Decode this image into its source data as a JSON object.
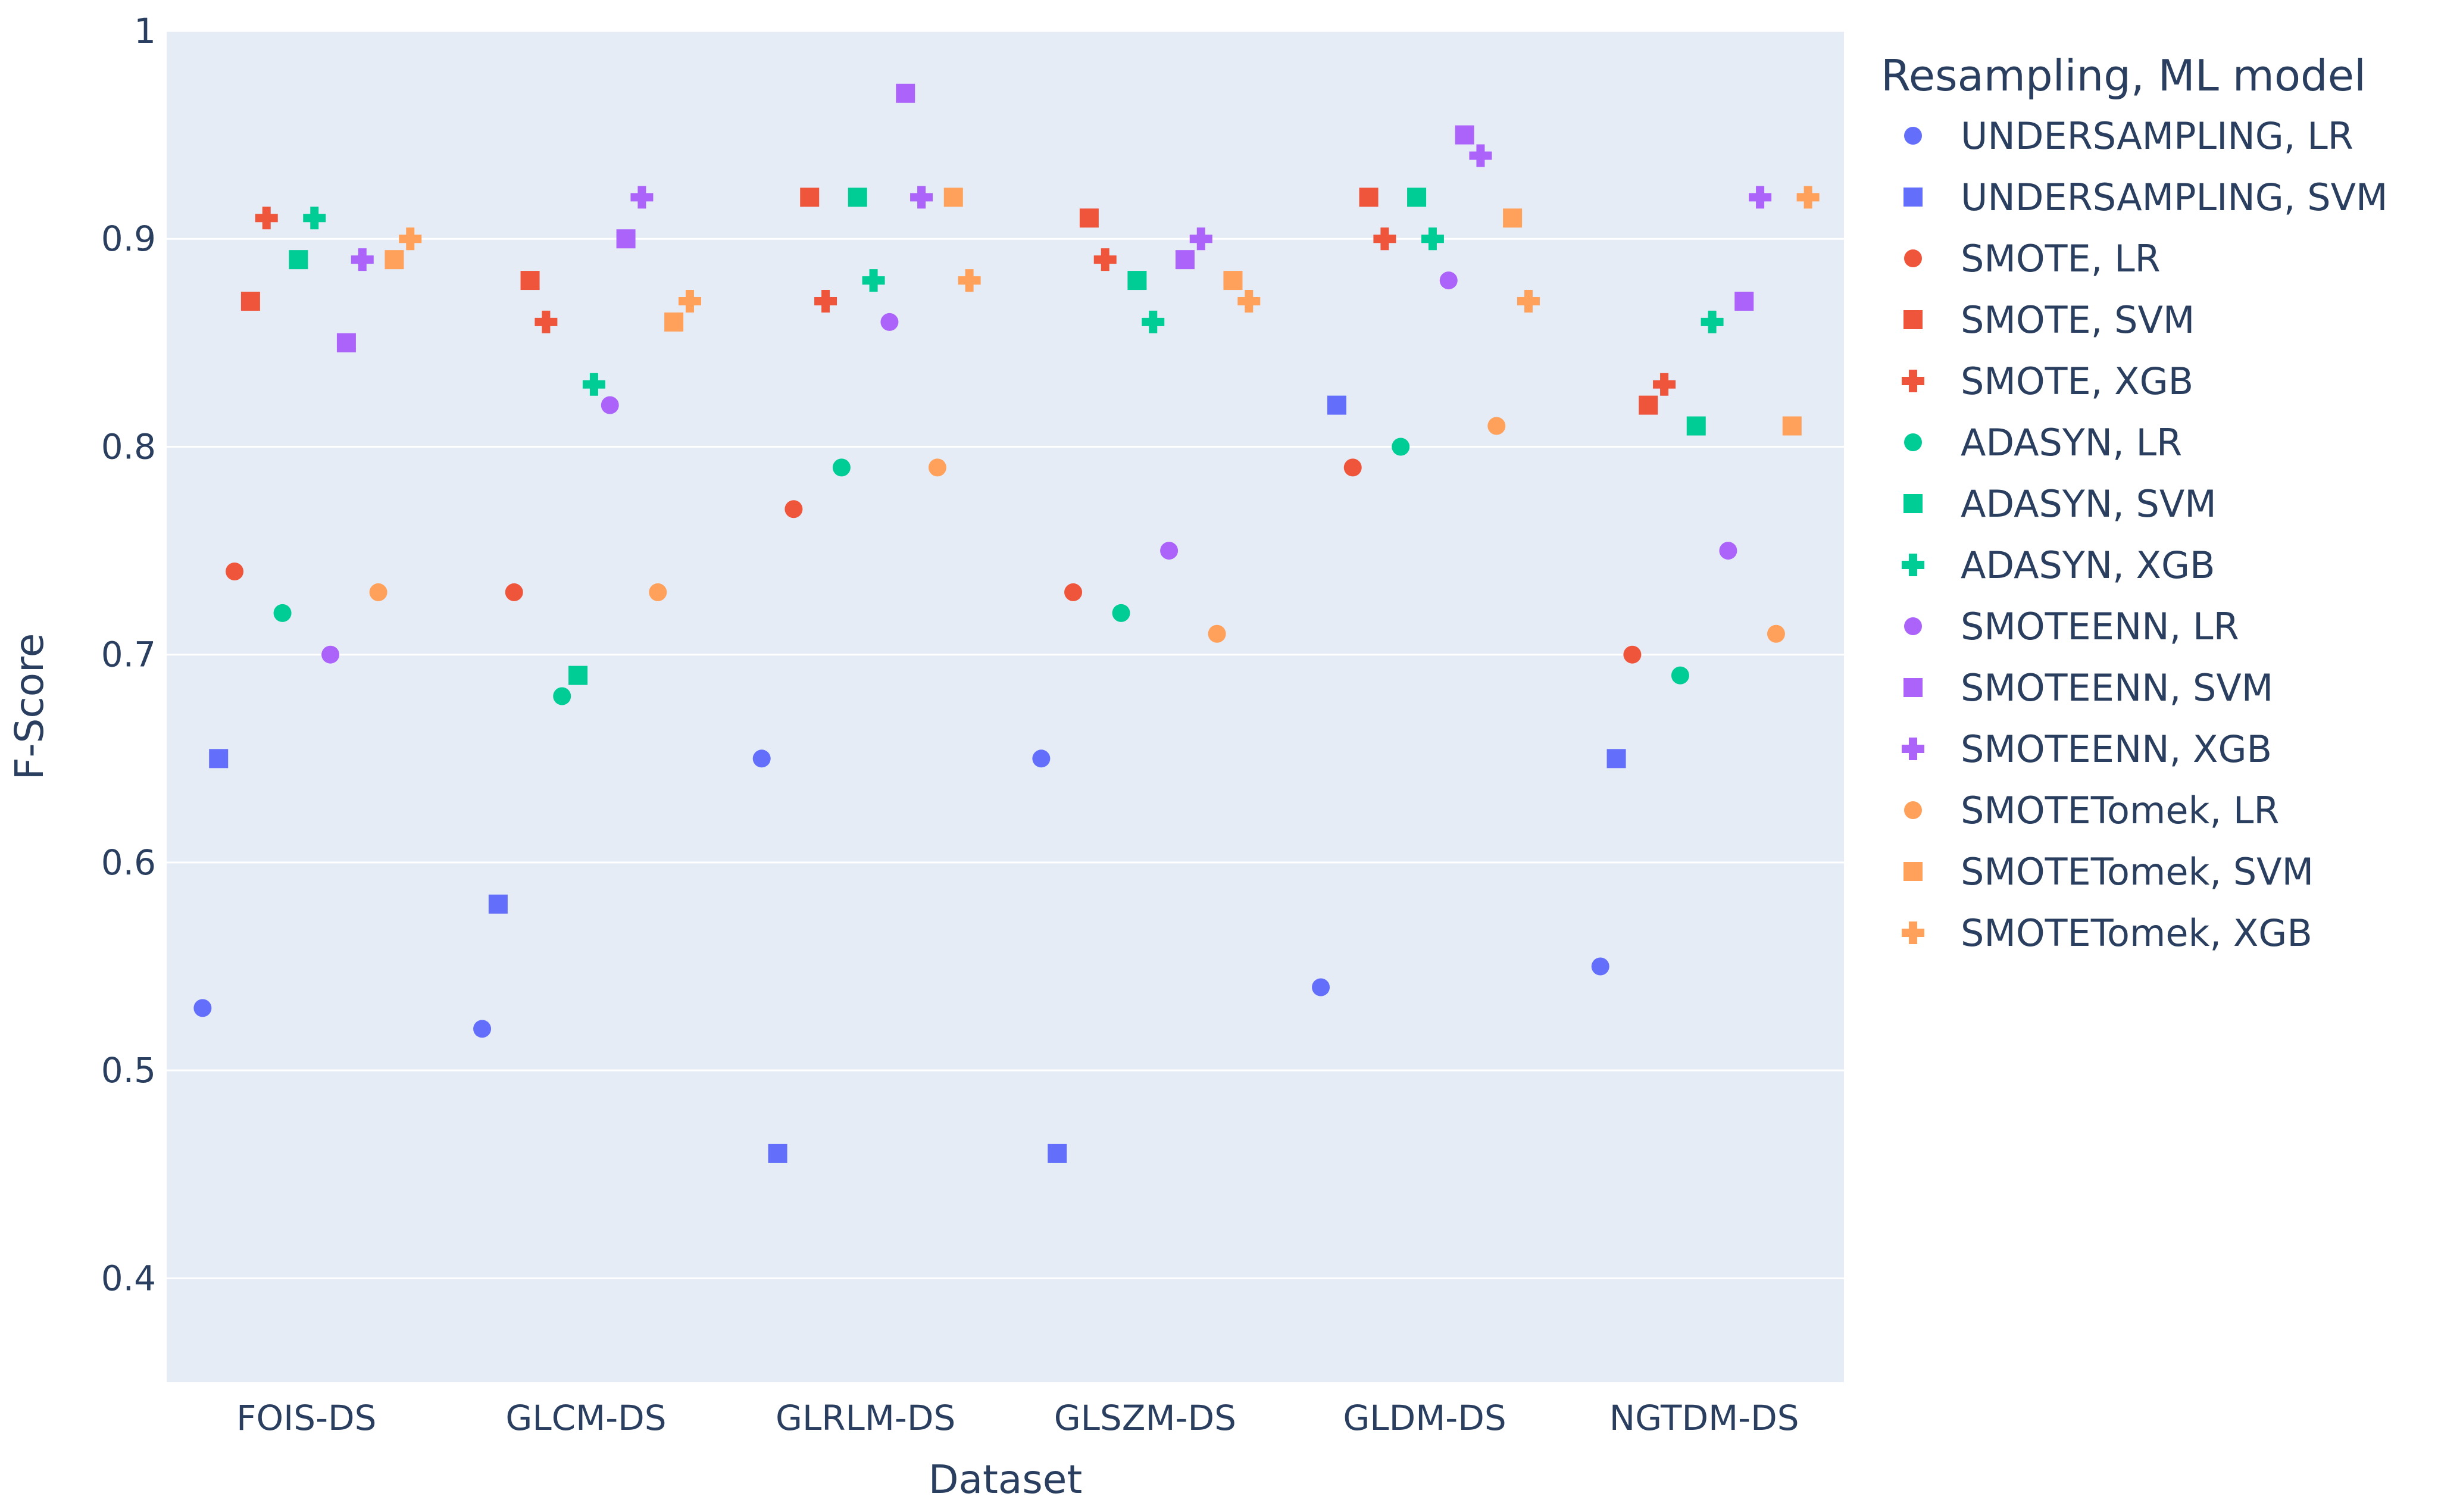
{
  "chart_data": {
    "type": "scatter",
    "title": "",
    "xlabel": "Dataset",
    "ylabel": "F-Score",
    "categories": [
      "FOIS-DS",
      "GLCM-DS",
      "GLRLM-DS",
      "GLSZM-DS",
      "GLDM-DS",
      "NGTDM-DS"
    ],
    "ylim": [
      0.35,
      1.0
    ],
    "yticks": [
      0.4,
      0.5,
      0.6,
      0.7,
      0.8,
      0.9,
      1
    ],
    "ytick_labels": [
      "0.4",
      "0.5",
      "0.6",
      "0.7",
      "0.8",
      "0.9",
      "1"
    ],
    "grid": true,
    "legend_title": "Resampling, ML model",
    "legend_position": "right",
    "series": [
      {
        "name": "UNDERSAMPLING, LR",
        "resampling": "UNDERSAMPLING",
        "model": "LR",
        "symbol": "circle",
        "color": "#636efa",
        "values": [
          0.53,
          0.52,
          0.65,
          0.65,
          0.54,
          0.55
        ]
      },
      {
        "name": "UNDERSAMPLING, SVM",
        "resampling": "UNDERSAMPLING",
        "model": "SVM",
        "symbol": "square",
        "color": "#636efa",
        "values": [
          0.65,
          0.58,
          0.46,
          0.46,
          0.82,
          0.65
        ]
      },
      {
        "name": "SMOTE, LR",
        "resampling": "SMOTE",
        "model": "LR",
        "symbol": "circle",
        "color": "#ef553b",
        "values": [
          0.74,
          0.73,
          0.77,
          0.73,
          0.79,
          0.7
        ]
      },
      {
        "name": "SMOTE, SVM",
        "resampling": "SMOTE",
        "model": "SVM",
        "symbol": "square",
        "color": "#ef553b",
        "values": [
          0.87,
          0.88,
          0.92,
          0.91,
          0.92,
          0.82
        ]
      },
      {
        "name": "SMOTE, XGB",
        "resampling": "SMOTE",
        "model": "XGB",
        "symbol": "cross",
        "color": "#ef553b",
        "values": [
          0.91,
          0.86,
          0.87,
          0.89,
          0.9,
          0.83
        ]
      },
      {
        "name": "ADASYN, LR",
        "resampling": "ADASYN",
        "model": "LR",
        "symbol": "circle",
        "color": "#00cc96",
        "values": [
          0.72,
          0.68,
          0.79,
          0.72,
          0.8,
          0.69
        ]
      },
      {
        "name": "ADASYN, SVM",
        "resampling": "ADASYN",
        "model": "SVM",
        "symbol": "square",
        "color": "#00cc96",
        "values": [
          0.89,
          0.69,
          0.92,
          0.88,
          0.92,
          0.81
        ]
      },
      {
        "name": "ADASYN, XGB",
        "resampling": "ADASYN",
        "model": "XGB",
        "symbol": "cross",
        "color": "#00cc96",
        "values": [
          0.91,
          0.83,
          0.88,
          0.86,
          0.9,
          0.86
        ]
      },
      {
        "name": "SMOTEENN, LR",
        "resampling": "SMOTEENN",
        "model": "LR",
        "symbol": "circle",
        "color": "#ab63fa",
        "values": [
          0.7,
          0.82,
          0.86,
          0.75,
          0.88,
          0.75
        ]
      },
      {
        "name": "SMOTEENN, SVM",
        "resampling": "SMOTEENN",
        "model": "SVM",
        "symbol": "square",
        "color": "#ab63fa",
        "values": [
          0.85,
          0.9,
          0.97,
          0.89,
          0.95,
          0.87
        ]
      },
      {
        "name": "SMOTEENN, XGB",
        "resampling": "SMOTEENN",
        "model": "XGB",
        "symbol": "cross",
        "color": "#ab63fa",
        "values": [
          0.89,
          0.92,
          0.92,
          0.9,
          0.94,
          0.92
        ]
      },
      {
        "name": "SMOTETomek, LR",
        "resampling": "SMOTETomek",
        "model": "LR",
        "symbol": "circle",
        "color": "#ffa15a",
        "values": [
          0.73,
          0.73,
          0.79,
          0.71,
          0.81,
          0.71
        ]
      },
      {
        "name": "SMOTETomek, SVM",
        "resampling": "SMOTETomek",
        "model": "SVM",
        "symbol": "square",
        "color": "#ffa15a",
        "values": [
          0.89,
          0.86,
          0.92,
          0.88,
          0.91,
          0.81
        ]
      },
      {
        "name": "SMOTETomek, XGB",
        "resampling": "SMOTETomek",
        "model": "XGB",
        "symbol": "cross",
        "color": "#ffa15a",
        "values": [
          0.9,
          0.87,
          0.88,
          0.87,
          0.87,
          0.92
        ]
      }
    ]
  },
  "colors": {
    "plot_background": "#e5ecf6",
    "grid": "#ffffff",
    "text": "#2a3f5f"
  }
}
